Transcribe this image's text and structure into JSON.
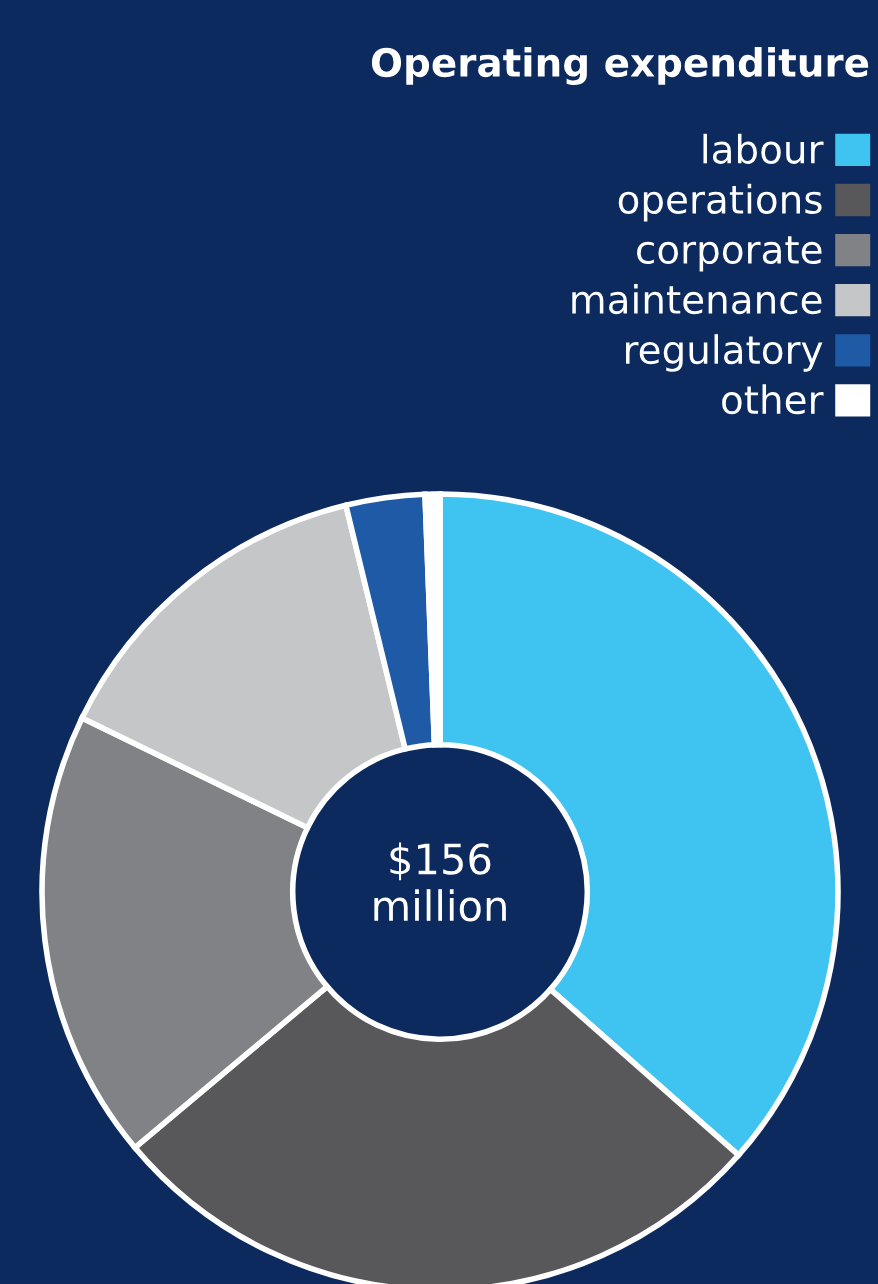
{
  "chart_data": {
    "type": "donut",
    "title": "Operating expenditure",
    "categories": [
      "labour",
      "operations",
      "corporate",
      "maintenance",
      "regulatory",
      "other"
    ],
    "values": [
      36.5,
      27.4,
      18.3,
      14.0,
      3.2,
      0.6
    ],
    "colors": [
      "#3fc3f0",
      "#58585a",
      "#808285",
      "#c5c6c8",
      "#1f5aa6",
      "#ffffff"
    ],
    "annotations": [
      "$156\nmillion"
    ],
    "legend": "top right"
  }
}
